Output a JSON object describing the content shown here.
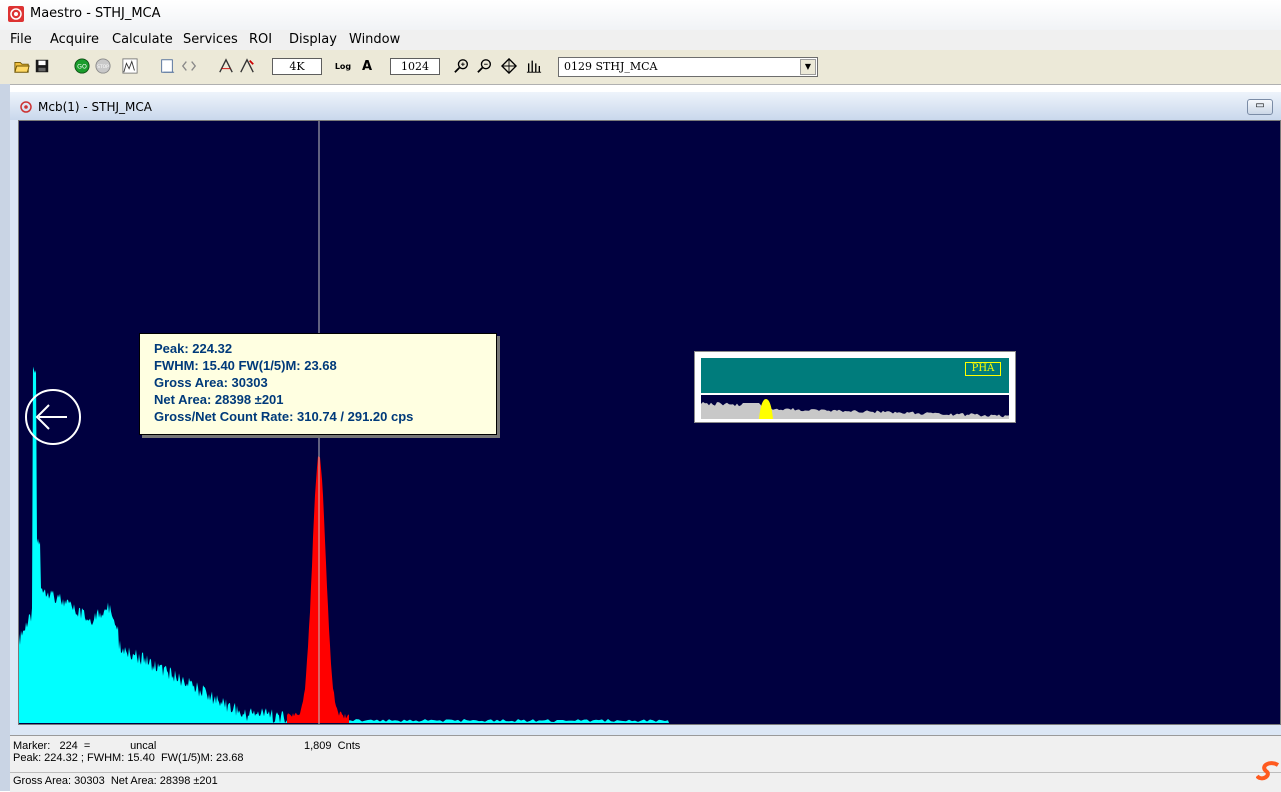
{
  "window": {
    "title": "Maestro - STHJ_MCA",
    "icon": "maestro-app-icon"
  },
  "menu": {
    "items": [
      "File",
      "Acquire",
      "Calculate",
      "Services",
      "ROI",
      "Display",
      "Window"
    ]
  },
  "toolbar": {
    "icons": [
      "open-folder-icon",
      "save-disk-icon",
      "go-icon",
      "stop-icon",
      "clear-spectrum-icon",
      "copy-buffer-icon",
      "roi-icon",
      "auto-mark-icon",
      "mark-icon",
      "log-scale-icon",
      "zoom-in-icon",
      "zoom-out-icon",
      "center-icon",
      "fine-center-icon"
    ],
    "scale_value": "4K",
    "log_label": "Log",
    "auto_label": "A",
    "vertical_scale": "1024",
    "detector_selected": "0129  STHJ_MCA"
  },
  "child_window": {
    "title": "Mcb(1) - STHJ_MCA",
    "minimize_label": "▭"
  },
  "peak_info": {
    "peak": "Peak: 224.32",
    "fwhm": "FWHM: 15.40  FW(1/5)M: 23.68",
    "gross_area": "Gross Area: 30303",
    "net_area": "Net Area: 28398 ±201",
    "count_rate": "Gross/Net Count Rate: 310.74 / 291.20 cps"
  },
  "overview": {
    "mode_label": "PHA"
  },
  "status": {
    "marker_line": "Marker:   224  =             uncal",
    "counts": "1,809  Cnts",
    "peak_line": "Peak: 224.32 ; FWHM: 15.40  FW(1/5)M: 23.68",
    "area_line": "Gross Area: 30303  Net Area: 28398 ±201"
  },
  "colors": {
    "spectrum_background": "#000040",
    "spectrum_fill": "#00ffff",
    "roi_fill": "#ff0000",
    "marker_line": "#c0c0c0",
    "info_box": "#ffffe1",
    "info_text": "#003a7a",
    "overview_bar": "#007c7c",
    "overview_roi": "#ffff00"
  }
}
